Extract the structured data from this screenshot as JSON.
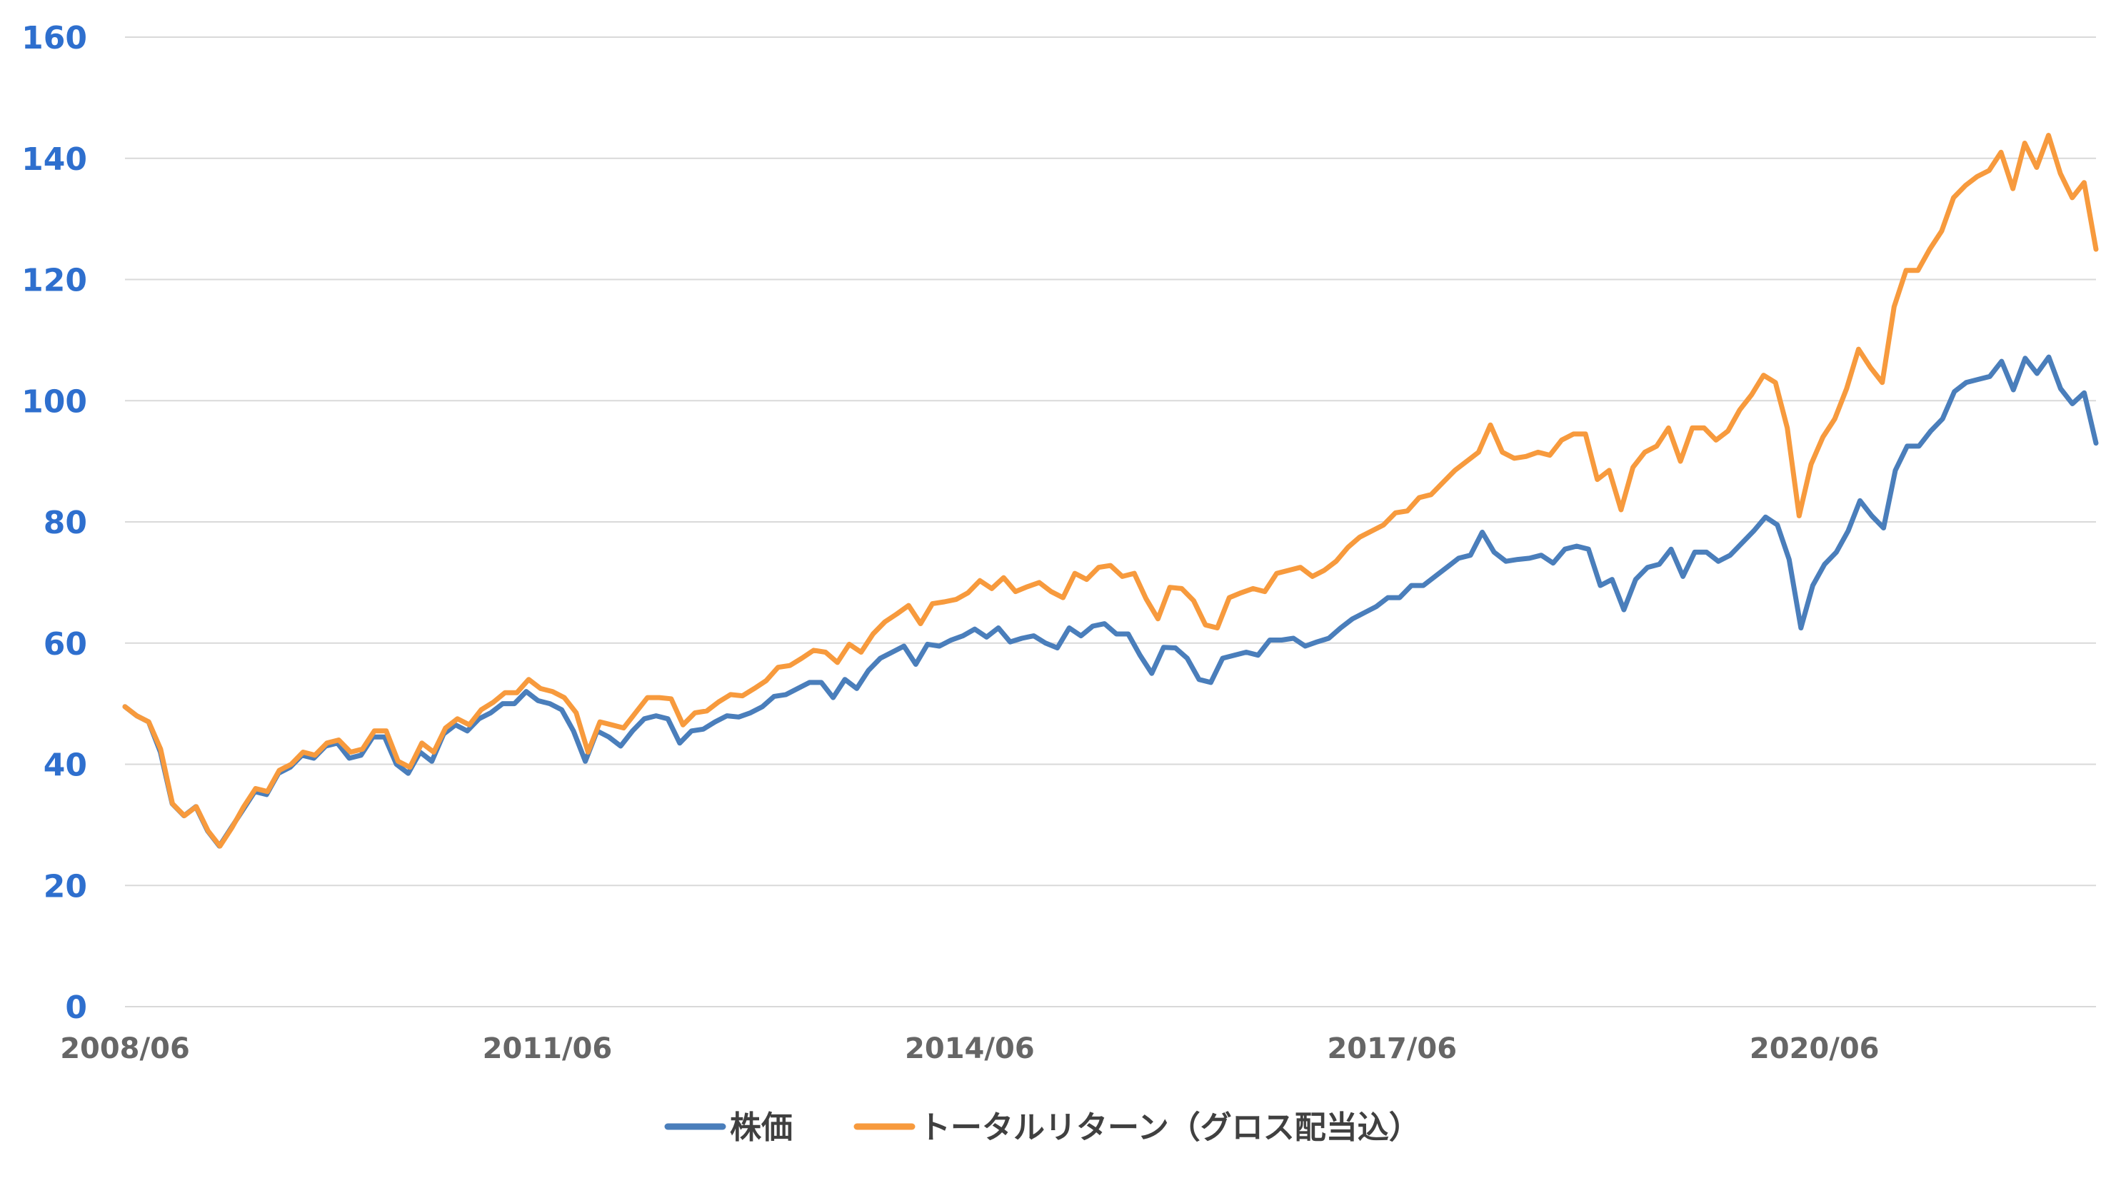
{
  "chart_data": {
    "type": "line",
    "ylim": [
      0,
      160
    ],
    "yticks": [
      "0",
      "20",
      "40",
      "60",
      "80",
      "100",
      "120",
      "140",
      "160"
    ],
    "xtick_labels": [
      "2008/06",
      "2011/06",
      "2014/06",
      "2017/06",
      "2020/06"
    ],
    "x_start": "2008/06",
    "x_end": "2022/06",
    "grid": true,
    "legend_position": "bottom",
    "colors": {
      "price": "#4a7ebb",
      "total_return": "#f79a3d",
      "ytick": "#2e6fce",
      "xtick": "#666666"
    },
    "series": [
      {
        "name": "株価",
        "key": "price",
        "values": [
          49.5,
          48,
          47,
          42,
          33.5,
          31.5,
          33,
          29,
          26.5,
          29.5,
          32.5,
          35.5,
          35,
          38.5,
          39.5,
          41.5,
          41,
          43,
          43.5,
          41,
          41.5,
          44.5,
          44.5,
          40,
          38.5,
          42,
          40.5,
          45,
          46.5,
          45.5,
          47.5,
          48.5,
          50,
          50,
          52,
          50.5,
          50,
          49,
          45.5,
          40.5,
          45.5,
          44.5,
          43,
          45.5,
          47.5,
          48,
          47.5,
          43.5,
          45.5,
          45.8,
          47,
          48,
          47.8,
          48.5,
          49.5,
          51.2,
          51.5,
          52.5,
          53.5,
          53.5,
          51,
          54,
          52.5,
          55.5,
          57.5,
          58.5,
          59.5,
          56.5,
          59.8,
          59.5,
          60.5,
          61.2,
          62.3,
          61,
          62.5,
          60.2,
          60.8,
          61.2,
          60,
          59.2,
          62.5,
          61.2,
          62.8,
          63.2,
          61.5,
          61.5,
          58,
          55,
          59.3,
          59.2,
          57.5,
          54,
          53.5,
          57.5,
          58,
          58.5,
          58,
          60.5,
          60.5,
          60.8,
          59.5,
          60.2,
          60.8,
          62.5,
          64,
          65,
          66,
          67.5,
          67.5,
          69.5,
          69.5,
          71,
          72.5,
          74,
          74.5,
          78.3,
          75,
          73.5,
          73.8,
          74,
          74.5,
          73.2,
          75.5,
          76,
          75.5,
          69.5,
          70.5,
          65.5,
          70.5,
          72.5,
          73,
          75.5,
          71,
          75,
          75,
          73.5,
          74.5,
          76.5,
          78.5,
          80.8,
          79.5,
          73.8,
          62.5,
          69.5,
          73,
          75,
          78.5,
          83.5,
          81,
          79,
          88.5,
          92.5,
          92.5,
          95,
          97,
          101.5,
          103,
          103.5,
          104,
          106.5,
          101.8,
          107,
          104.5,
          107.2,
          102,
          99.5,
          101.3,
          93
        ]
      },
      {
        "name": "トータルリターン（グロス配当込）",
        "key": "total_return",
        "values": [
          49.5,
          48,
          47,
          42.5,
          33.5,
          31.5,
          33,
          29,
          26.5,
          29.5,
          33,
          36,
          35.5,
          39,
          40,
          42,
          41.5,
          43.5,
          44,
          42,
          42.5,
          45.5,
          45.5,
          40.5,
          39.5,
          43.5,
          42,
          46,
          47.5,
          46.5,
          49,
          50.2,
          51.8,
          51.8,
          54,
          52.5,
          52,
          51,
          48.5,
          42,
          47,
          46.5,
          46,
          48.5,
          51,
          51,
          50.8,
          46.5,
          48.5,
          48.8,
          50.3,
          51.5,
          51.3,
          52.5,
          53.8,
          56,
          56.3,
          57.5,
          58.8,
          58.5,
          56.8,
          59.8,
          58.5,
          61.5,
          63.5,
          64.8,
          66.2,
          63.2,
          66.5,
          66.8,
          67.2,
          68.3,
          70.3,
          69,
          70.8,
          68.5,
          69.3,
          70,
          68.5,
          67.5,
          71.5,
          70.5,
          72.5,
          72.8,
          71,
          71.5,
          67.3,
          64,
          69.2,
          69,
          67,
          63,
          62.5,
          67.5,
          68.3,
          69,
          68.5,
          71.5,
          72,
          72.5,
          71,
          72,
          73.5,
          75.8,
          77.5,
          78.5,
          79.5,
          81.5,
          81.8,
          84,
          84.5,
          86.5,
          88.5,
          90,
          91.5,
          96,
          91.5,
          90.5,
          90.8,
          91.5,
          91,
          93.5,
          94.5,
          94.5,
          87,
          88.5,
          82,
          89,
          91.5,
          92.5,
          95.5,
          90,
          95.5,
          95.5,
          93.5,
          95,
          98.5,
          101,
          104.2,
          103,
          95.5,
          81,
          89.5,
          94,
          97,
          102,
          108.5,
          105.5,
          103,
          115.5,
          121.5,
          121.5,
          125,
          128,
          133.5,
          135.5,
          137,
          138,
          141,
          135,
          142.5,
          138.5,
          143.8,
          137.5,
          133.5,
          136,
          125
        ]
      }
    ]
  }
}
